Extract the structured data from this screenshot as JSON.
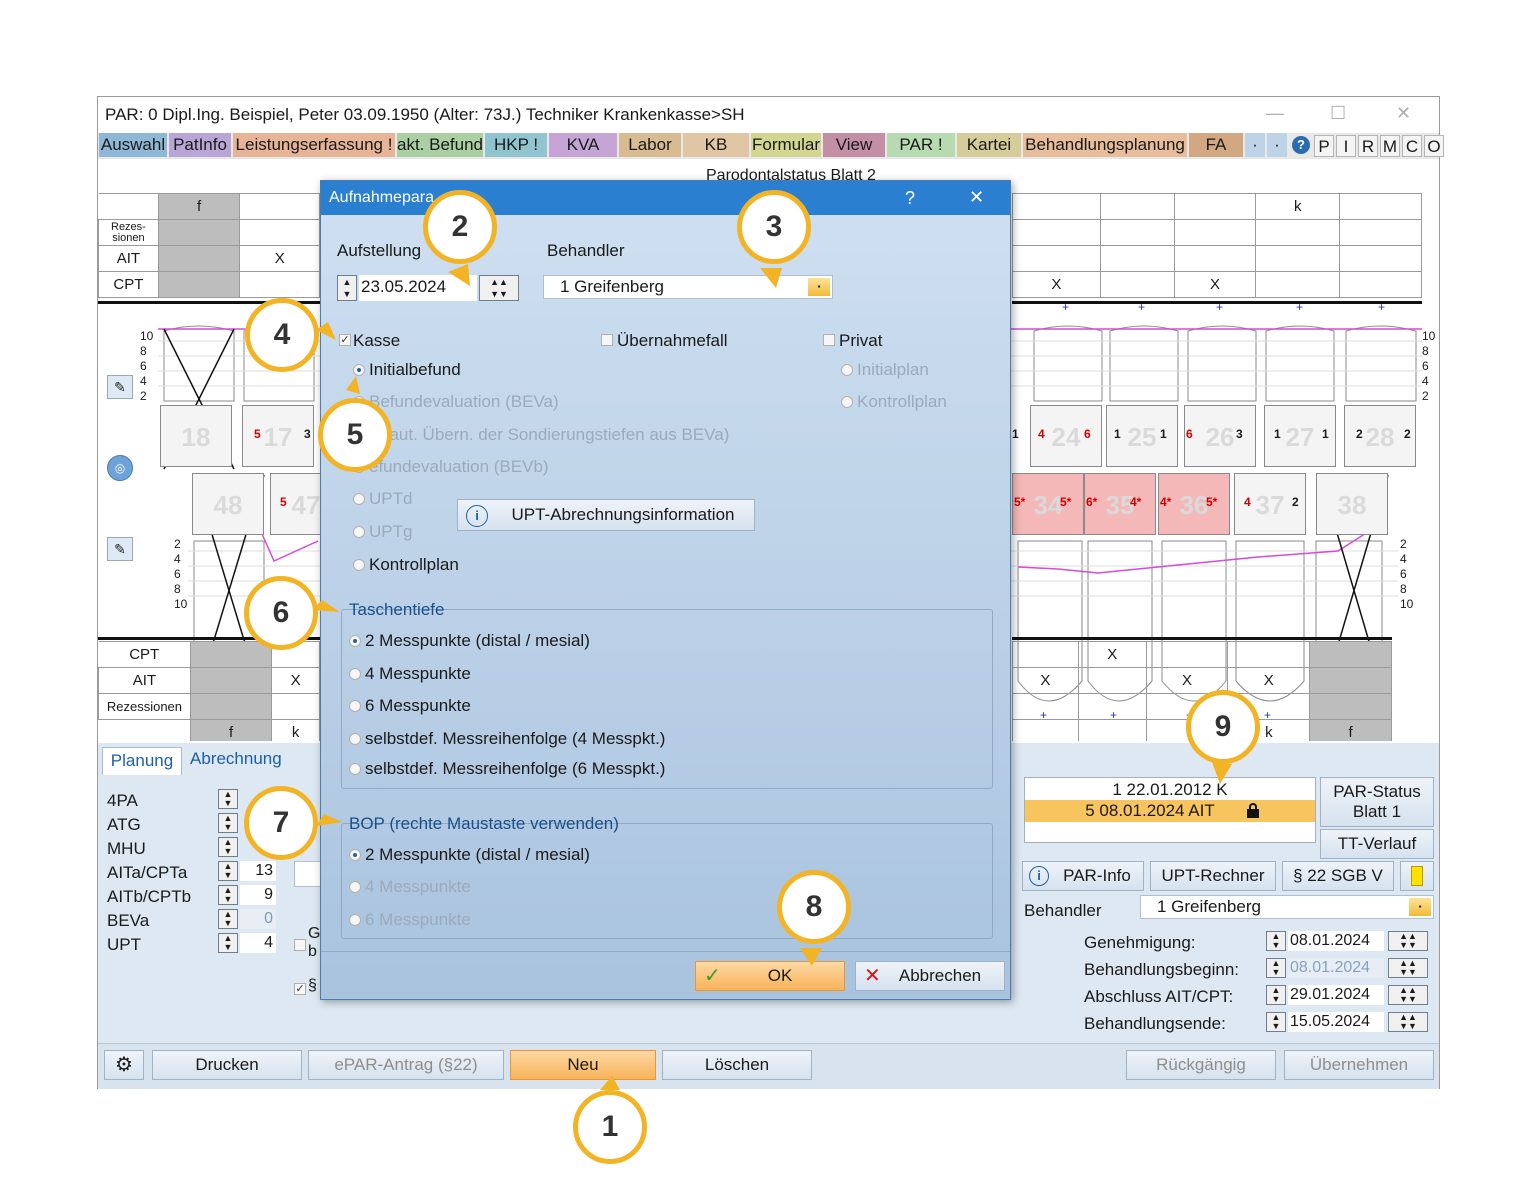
{
  "window": {
    "title": "PAR: 0  Dipl.Ing. Beispiel, Peter  03.09.1950 (Alter: 73J.)  Techniker Krankenkasse>SH",
    "controls": [
      "—",
      "☐",
      "✕"
    ]
  },
  "menu": {
    "items": [
      "Auswahl",
      "PatInfo",
      "Leistungserfassung !",
      "akt. Befund",
      "HKP !",
      "KVA",
      "Labor",
      "KB",
      "Formular",
      "View",
      "PAR !",
      "Kartei",
      "Behandlungsplanung",
      "FA",
      "·",
      "·"
    ],
    "colors": [
      "#8fb8d6",
      "#b9a6d6",
      "#e7b497",
      "#a9cfa2",
      "#90c4ce",
      "#c5a5d6",
      "#d7bc92",
      "#e0c6a4",
      "#d2d690",
      "#c28fa4",
      "#b7dbb0",
      "#d6cc9a",
      "#e7bd9c",
      "#d2a882",
      "#bcd3e8",
      "#bcd3e8"
    ],
    "right_buttons": [
      "P",
      "I",
      "R",
      "M",
      "C",
      "O"
    ],
    "help_icon": "question-circle-icon"
  },
  "chart": {
    "title": "Parodontalstatus Blatt 2",
    "top_table": {
      "rows": [
        "Rezes-\nsionen",
        "AIT",
        "CPT"
      ],
      "f_label": "f",
      "k_label": "k",
      "x_mark": "X"
    },
    "upper_teeth": [
      "18",
      "17",
      "24",
      "25",
      "26",
      "27",
      "28"
    ],
    "lower_teeth": [
      "48",
      "47",
      "34",
      "35",
      "36",
      "37",
      "38"
    ],
    "upper_values": {
      "t17": [
        "5",
        "3"
      ],
      "t24": [
        "4",
        "6"
      ],
      "t25": [
        "1",
        "1"
      ],
      "t26": [
        "6",
        "3"
      ],
      "t27": [
        "1",
        "1"
      ],
      "t28": [
        "2",
        "2"
      ],
      "t_left": [
        "1"
      ]
    },
    "lower_values": {
      "t47": [
        "5"
      ],
      "t34": [
        "5*",
        "5*"
      ],
      "t35": [
        "6*",
        "4*"
      ],
      "t36": [
        "4*",
        "5*"
      ],
      "t37": [
        "4",
        "2"
      ]
    },
    "scale_left": [
      "10",
      "8",
      "6",
      "4",
      "2"
    ],
    "scale_right": [
      "10",
      "8",
      "6",
      "4",
      "2"
    ],
    "scale_lower": [
      "2",
      "4",
      "6",
      "8",
      "10"
    ],
    "bottom_table": {
      "rows": [
        "CPT",
        "AIT",
        "Rezessionen"
      ],
      "f_label": "f",
      "k_label": "k",
      "x_mark": "X"
    }
  },
  "bottom_panel": {
    "tabs": [
      "Planung",
      "Abrechnung"
    ],
    "counters": [
      {
        "label": "4PA",
        "value": ""
      },
      {
        "label": "ATG",
        "value": ""
      },
      {
        "label": "MHU",
        "value": ""
      },
      {
        "label": "AITa/CPTa",
        "value": "13"
      },
      {
        "label": "AITb/CPTb",
        "value": "9"
      },
      {
        "label": "BEVa",
        "value": "0"
      },
      {
        "label": "UPT",
        "value": "4"
      }
    ],
    "partial_labels": [
      "G",
      "b",
      "§"
    ],
    "history": [
      {
        "text": "1 22.01.2012  K",
        "selected": false
      },
      {
        "text": "5 08.01.2024  AIT",
        "selected": true
      }
    ],
    "lock_icon": "lock-icon",
    "par_status_button": "PAR-Status\nBlatt 1",
    "tt_verlauf_button": "TT-Verlauf",
    "par_info_button": "PAR-Info",
    "upt_rechner_button": "UPT-Rechner",
    "sgb_button": "§ 22 SGB V",
    "behandler_label": "Behandler",
    "behandler_value": "1 Greifenberg",
    "dates": [
      {
        "label": "Genehmigung:",
        "value": "08.01.2024",
        "disabled": false
      },
      {
        "label": "Behandlungsbeginn:",
        "value": "08.01.2024",
        "disabled": true
      },
      {
        "label": "Abschluss AIT/CPT:",
        "value": "29.01.2024",
        "disabled": false
      },
      {
        "label": "Behandlungsende:",
        "value": "15.05.2024",
        "disabled": false
      }
    ]
  },
  "footer": {
    "settings_icon": "gear-icon",
    "buttons": [
      "Drucken",
      "ePAR-Antrag (§22)",
      "Neu",
      "Löschen",
      "Rückgängig",
      "Übernehmen"
    ]
  },
  "dialog": {
    "title": "Aufnahmepara",
    "help": "?",
    "close": "✕",
    "aufstellung_label": "Aufstellung",
    "aufstellung_value": "23.05.2024",
    "behandler_label": "Behandler",
    "behandler_value": "1 Greifenberg",
    "kasse_label": "Kasse",
    "uebernahmefall_label": "Übernahmefall",
    "privat_label": "Privat",
    "kasse_options": [
      {
        "label": "Initialbefund",
        "checked": true,
        "disabled": false
      },
      {
        "label": "Befundevaluation (BEVa)",
        "checked": false,
        "disabled": true
      },
      {
        "label": "T (aut. Übern. der Sondierungstiefen aus BEVa)",
        "checked": false,
        "disabled": true
      },
      {
        "label": "efundevaluation (BEVb)",
        "checked": false,
        "disabled": true
      },
      {
        "label": "UPTd",
        "checked": false,
        "disabled": true
      },
      {
        "label": "UPTg",
        "checked": false,
        "disabled": true
      },
      {
        "label": "Kontrollplan",
        "checked": false,
        "disabled": false
      }
    ],
    "privat_options": [
      "Initialplan",
      "Kontrollplan"
    ],
    "upt_button": "UPT-Abrechnungsinformation",
    "info_icon": "info-icon",
    "taschentiefe_legend": "Taschentiefe",
    "taschentiefe_options": [
      {
        "label": "2 Messpunkte (distal / mesial)",
        "checked": true
      },
      {
        "label": "4 Messpunkte",
        "checked": false
      },
      {
        "label": "6 Messpunkte",
        "checked": false
      },
      {
        "label": "selbstdef. Messreihenfolge (4 Messpkt.)",
        "checked": false
      },
      {
        "label": "selbstdef. Messreihenfolge (6 Messpkt.)",
        "checked": false
      }
    ],
    "bop_legend": "BOP (rechte Maustaste verwenden)",
    "bop_options": [
      {
        "label": "2 Messpunkte (distal / mesial)",
        "checked": true,
        "disabled": false
      },
      {
        "label": "4 Messpunkte",
        "checked": false,
        "disabled": true
      },
      {
        "label": "6 Messpunkte",
        "checked": false,
        "disabled": true
      }
    ],
    "ok_button": "OK",
    "cancel_button": "Abbrechen"
  },
  "callouts": [
    "1",
    "2",
    "3",
    "4",
    "5",
    "6",
    "7",
    "8",
    "9"
  ],
  "accent_color": "#f2b325"
}
